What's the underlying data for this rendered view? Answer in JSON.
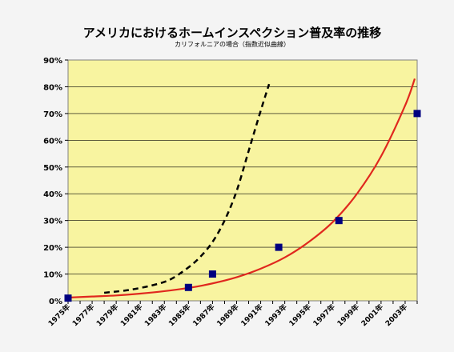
{
  "chart_data": {
    "type": "line",
    "title": "アメリカにおけるホームインスペクション普及率の推移",
    "subtitle": "カリフォルニアの場合（指数近似曲線）",
    "xlabel": "",
    "ylabel": "",
    "x_range": [
      1975,
      2004
    ],
    "ylim": [
      0,
      90
    ],
    "y_tick_labels": [
      "0%",
      "10%",
      "20%",
      "30%",
      "40%",
      "50%",
      "60%",
      "70%",
      "80%",
      "90%"
    ],
    "x_tick_labels": [
      "1975年",
      "1977年",
      "1979年",
      "1981年",
      "1983年",
      "1985年",
      "1987年",
      "1989年",
      "1991年",
      "1993年",
      "1995年",
      "1997年",
      "1999年",
      "2001年",
      "2003年"
    ],
    "grid": "horizontal",
    "plot_background": "#f8f4a0",
    "series": [
      {
        "kind": "points",
        "marker": "square",
        "color": "#000080",
        "points": [
          {
            "x": 1975,
            "y": 1
          },
          {
            "x": 1985,
            "y": 5
          },
          {
            "x": 1987,
            "y": 10
          },
          {
            "x": 1992.5,
            "y": 20
          },
          {
            "x": 1997.5,
            "y": 30
          },
          {
            "x": 2004,
            "y": 70
          }
        ]
      },
      {
        "kind": "fitted-curve",
        "style": "solid",
        "color": "#e0281e",
        "points": [
          {
            "x": 1975,
            "y": 1.2
          },
          {
            "x": 1977,
            "y": 1.6
          },
          {
            "x": 1979,
            "y": 2.0
          },
          {
            "x": 1981,
            "y": 2.7
          },
          {
            "x": 1983,
            "y": 3.6
          },
          {
            "x": 1985,
            "y": 4.8
          },
          {
            "x": 1987,
            "y": 6.5
          },
          {
            "x": 1989,
            "y": 8.8
          },
          {
            "x": 1991,
            "y": 12.0
          },
          {
            "x": 1993,
            "y": 16.2
          },
          {
            "x": 1995,
            "y": 22.0
          },
          {
            "x": 1997,
            "y": 29.5
          },
          {
            "x": 1999,
            "y": 40.0
          },
          {
            "x": 2001,
            "y": 54.0
          },
          {
            "x": 2003,
            "y": 73.0
          },
          {
            "x": 2003.8,
            "y": 83.0
          }
        ]
      },
      {
        "kind": "fitted-curve",
        "style": "dashed",
        "color": "#000000",
        "points": [
          {
            "x": 1978,
            "y": 3.0
          },
          {
            "x": 1980,
            "y": 4.0
          },
          {
            "x": 1982,
            "y": 5.8
          },
          {
            "x": 1983.5,
            "y": 8.0
          },
          {
            "x": 1985,
            "y": 12.5
          },
          {
            "x": 1986,
            "y": 16.5
          },
          {
            "x": 1987,
            "y": 22.0
          },
          {
            "x": 1988,
            "y": 30.0
          },
          {
            "x": 1989,
            "y": 41.0
          },
          {
            "x": 1990,
            "y": 56.0
          },
          {
            "x": 1991,
            "y": 71.0
          },
          {
            "x": 1991.7,
            "y": 81.0
          }
        ]
      }
    ]
  }
}
